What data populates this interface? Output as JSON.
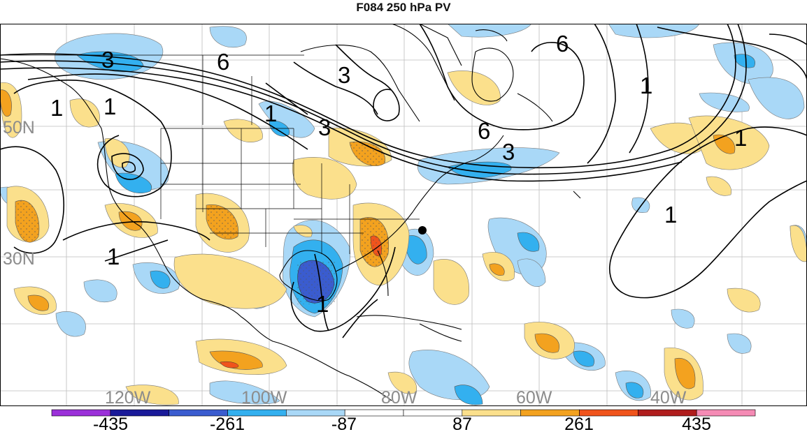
{
  "title": "F084 250 hPa PV",
  "lat_labels": [
    "50N",
    "30N"
  ],
  "lon_labels": [
    "120W",
    "100W",
    "80W",
    "60W",
    "40W"
  ],
  "contour_labels": [
    "3",
    "6",
    "1",
    "1",
    "3",
    "3",
    "6",
    "6",
    "3",
    "1",
    "1",
    "1",
    "1",
    "1",
    "1"
  ],
  "colorbar": {
    "tick_labels": [
      "-435",
      "-261",
      "-87",
      "87",
      "261",
      "435"
    ],
    "colors": [
      "#9b30d9",
      "#1a1a99",
      "#3a5ccf",
      "#33b0ef",
      "#a9d8f7",
      "#ffffff",
      "#ffffff",
      "#fbe08c",
      "#f3a21f",
      "#f0541c",
      "#b01d1d",
      "#f58bb5"
    ]
  },
  "station_marker": "filled-circle"
}
